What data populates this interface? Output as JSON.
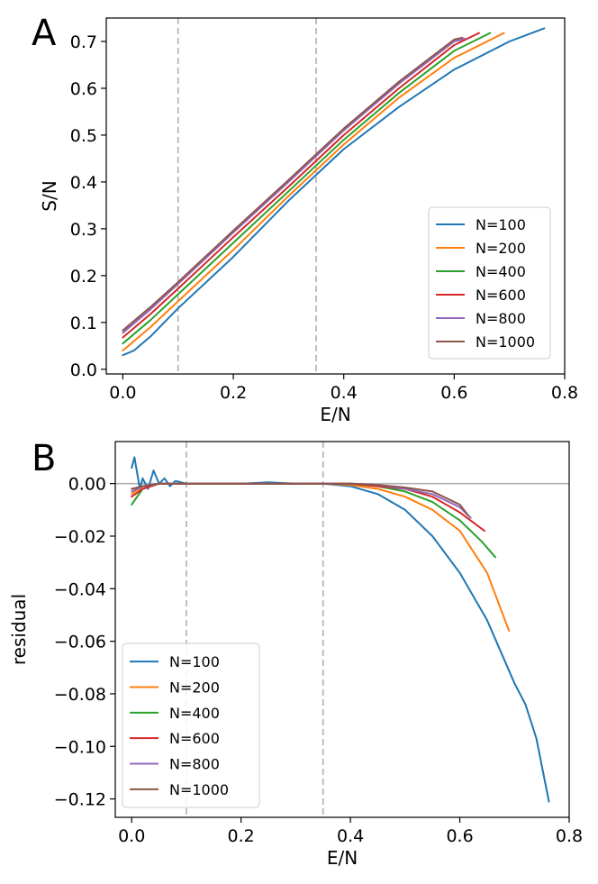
{
  "chart_data": [
    {
      "type": "line",
      "panel_label": "A",
      "xlabel": "E/N",
      "ylabel": "S/N",
      "xlim": [
        -0.03,
        0.8
      ],
      "ylim": [
        -0.01,
        0.75
      ],
      "xticks": [
        0.0,
        0.2,
        0.4,
        0.6,
        0.8
      ],
      "xtick_labels": [
        "0.0",
        "0.2",
        "0.4",
        "0.6",
        "0.8"
      ],
      "yticks": [
        0.0,
        0.1,
        0.2,
        0.3,
        0.4,
        0.5,
        0.6,
        0.7
      ],
      "ytick_labels": [
        "0.0",
        "0.1",
        "0.2",
        "0.3",
        "0.4",
        "0.5",
        "0.6",
        "0.7"
      ],
      "vlines": [
        0.1,
        0.35
      ],
      "grid": false,
      "legend_position": "lower-right",
      "series": [
        {
          "name": "N=100",
          "color": "#1f77b4",
          "x": [
            0.0,
            0.02,
            0.05,
            0.1,
            0.2,
            0.3,
            0.35,
            0.4,
            0.5,
            0.6,
            0.7,
            0.763
          ],
          "y": [
            0.03,
            0.04,
            0.07,
            0.13,
            0.24,
            0.36,
            0.415,
            0.47,
            0.56,
            0.64,
            0.7,
            0.728
          ]
        },
        {
          "name": "N=200",
          "color": "#ff7f0e",
          "x": [
            0.0,
            0.05,
            0.1,
            0.2,
            0.3,
            0.35,
            0.4,
            0.5,
            0.6,
            0.69
          ],
          "y": [
            0.04,
            0.09,
            0.145,
            0.255,
            0.37,
            0.425,
            0.48,
            0.58,
            0.665,
            0.718
          ]
        },
        {
          "name": "N=400",
          "color": "#2ca02c",
          "x": [
            0.0,
            0.05,
            0.1,
            0.2,
            0.3,
            0.35,
            0.4,
            0.5,
            0.6,
            0.665
          ],
          "y": [
            0.055,
            0.105,
            0.16,
            0.27,
            0.38,
            0.435,
            0.49,
            0.59,
            0.68,
            0.718
          ]
        },
        {
          "name": "N=600",
          "color": "#d62728",
          "x": [
            0.0,
            0.05,
            0.1,
            0.2,
            0.3,
            0.35,
            0.4,
            0.5,
            0.6,
            0.645
          ],
          "y": [
            0.068,
            0.118,
            0.172,
            0.282,
            0.39,
            0.445,
            0.5,
            0.6,
            0.692,
            0.718
          ]
        },
        {
          "name": "N=800",
          "color": "#9467bd",
          "x": [
            0.0,
            0.05,
            0.1,
            0.2,
            0.3,
            0.35,
            0.4,
            0.5,
            0.6,
            0.62
          ],
          "y": [
            0.078,
            0.128,
            0.182,
            0.292,
            0.4,
            0.455,
            0.51,
            0.61,
            0.7,
            0.706
          ]
        },
        {
          "name": "N=1000",
          "color": "#8c564b",
          "x": [
            0.0,
            0.05,
            0.1,
            0.2,
            0.3,
            0.35,
            0.4,
            0.5,
            0.6,
            0.615
          ],
          "y": [
            0.083,
            0.133,
            0.186,
            0.296,
            0.404,
            0.459,
            0.514,
            0.614,
            0.704,
            0.708
          ]
        }
      ]
    },
    {
      "type": "line",
      "panel_label": "B",
      "xlabel": "E/N",
      "ylabel": "residual",
      "xlim": [
        -0.03,
        0.8
      ],
      "ylim": [
        -0.127,
        0.016
      ],
      "xticks": [
        0.0,
        0.2,
        0.4,
        0.6,
        0.8
      ],
      "xtick_labels": [
        "0.0",
        "0.2",
        "0.4",
        "0.6",
        "0.8"
      ],
      "yticks": [
        0.0,
        -0.02,
        -0.04,
        -0.06,
        -0.08,
        -0.1,
        -0.12
      ],
      "ytick_labels": [
        "0.00",
        "−0.02",
        "−0.04",
        "−0.06",
        "−0.08",
        "−0.10",
        "−0.12"
      ],
      "vlines": [
        0.1,
        0.35
      ],
      "hline": 0.0,
      "grid": false,
      "legend_position": "lower-left",
      "series": [
        {
          "name": "N=100",
          "color": "#1f77b4",
          "x": [
            0.0,
            0.005,
            0.01,
            0.015,
            0.02,
            0.03,
            0.04,
            0.05,
            0.06,
            0.07,
            0.08,
            0.1,
            0.15,
            0.2,
            0.25,
            0.3,
            0.35,
            0.4,
            0.45,
            0.5,
            0.55,
            0.6,
            0.65,
            0.7,
            0.72,
            0.74,
            0.763
          ],
          "y": [
            0.006,
            0.01,
            0.004,
            -0.002,
            0.002,
            -0.002,
            0.005,
            0.0,
            0.002,
            -0.001,
            0.001,
            0.0,
            0.0,
            0.0,
            0.0005,
            0.0,
            0.0,
            -0.001,
            -0.004,
            -0.01,
            -0.02,
            -0.034,
            -0.052,
            -0.076,
            -0.084,
            -0.097,
            -0.121
          ]
        },
        {
          "name": "N=200",
          "color": "#ff7f0e",
          "x": [
            0.0,
            0.02,
            0.05,
            0.1,
            0.2,
            0.3,
            0.35,
            0.4,
            0.45,
            0.5,
            0.55,
            0.6,
            0.65,
            0.69
          ],
          "y": [
            -0.004,
            -0.001,
            0.0,
            0.0,
            0.0,
            0.0,
            0.0,
            -0.0005,
            -0.002,
            -0.005,
            -0.01,
            -0.018,
            -0.034,
            -0.056
          ]
        },
        {
          "name": "N=400",
          "color": "#2ca02c",
          "x": [
            0.0,
            0.02,
            0.05,
            0.1,
            0.2,
            0.3,
            0.35,
            0.4,
            0.45,
            0.5,
            0.55,
            0.6,
            0.64,
            0.665
          ],
          "y": [
            -0.008,
            -0.002,
            0.0,
            0.0,
            0.0,
            0.0,
            0.0,
            0.0,
            -0.001,
            -0.003,
            -0.007,
            -0.014,
            -0.022,
            -0.028
          ]
        },
        {
          "name": "N=600",
          "color": "#d62728",
          "x": [
            0.0,
            0.02,
            0.05,
            0.1,
            0.2,
            0.3,
            0.35,
            0.4,
            0.45,
            0.5,
            0.55,
            0.6,
            0.645
          ],
          "y": [
            -0.005,
            -0.002,
            0.0,
            0.0,
            0.0,
            0.0,
            0.0,
            0.0,
            -0.001,
            -0.002,
            -0.005,
            -0.011,
            -0.018
          ]
        },
        {
          "name": "N=800",
          "color": "#9467bd",
          "x": [
            0.0,
            0.02,
            0.05,
            0.1,
            0.2,
            0.3,
            0.35,
            0.4,
            0.45,
            0.5,
            0.55,
            0.6,
            0.62
          ],
          "y": [
            -0.003,
            -0.001,
            0.0,
            0.0,
            0.0,
            0.0,
            0.0,
            0.0,
            -0.0005,
            -0.002,
            -0.004,
            -0.009,
            -0.013
          ]
        },
        {
          "name": "N=1000",
          "color": "#8c564b",
          "x": [
            0.0,
            0.02,
            0.05,
            0.1,
            0.2,
            0.3,
            0.35,
            0.4,
            0.45,
            0.5,
            0.55,
            0.6,
            0.615
          ],
          "y": [
            -0.002,
            -0.001,
            0.0,
            0.0,
            0.0,
            0.0,
            0.0,
            0.0,
            -0.0005,
            -0.0015,
            -0.003,
            -0.008,
            -0.012
          ]
        }
      ]
    }
  ]
}
